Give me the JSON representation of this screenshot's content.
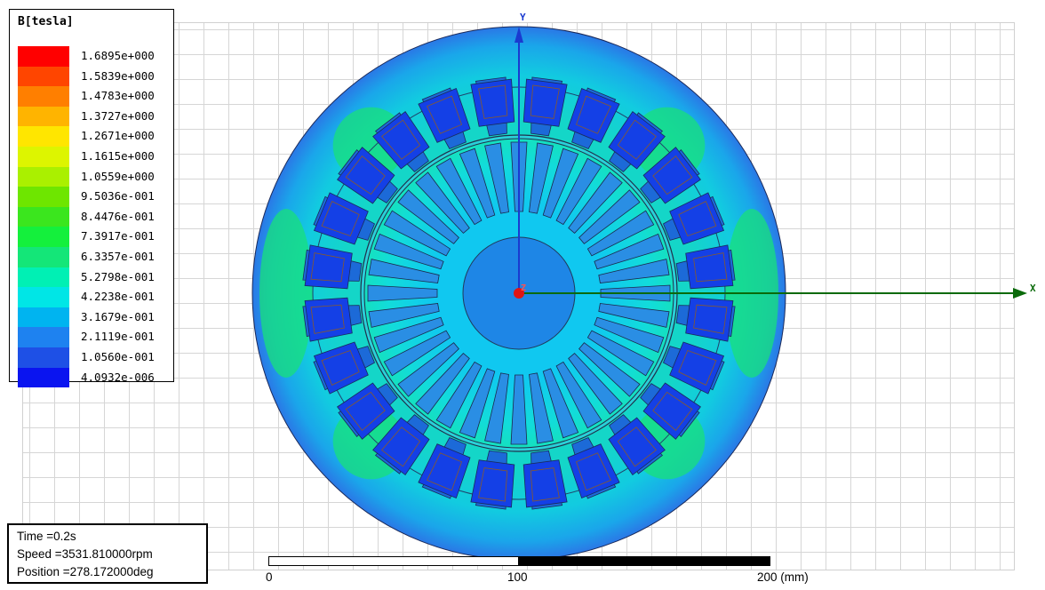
{
  "legend": {
    "title": "B[tesla]",
    "entries": [
      {
        "value": "1.6895e+000",
        "color": "#ff0000"
      },
      {
        "value": "1.5839e+000",
        "color": "#ff4500"
      },
      {
        "value": "1.4783e+000",
        "color": "#ff7f00"
      },
      {
        "value": "1.3727e+000",
        "color": "#ffb400"
      },
      {
        "value": "1.2671e+000",
        "color": "#ffe600"
      },
      {
        "value": "1.1615e+000",
        "color": "#ddf500"
      },
      {
        "value": "1.0559e+000",
        "color": "#aaf000"
      },
      {
        "value": "9.5036e-001",
        "color": "#6ee600"
      },
      {
        "value": "8.4476e-001",
        "color": "#3be61e"
      },
      {
        "value": "7.3917e-001",
        "color": "#14f03c"
      },
      {
        "value": "6.3357e-001",
        "color": "#14e678"
      },
      {
        "value": "5.2798e-001",
        "color": "#00f0b4"
      },
      {
        "value": "4.2238e-001",
        "color": "#00e6e6"
      },
      {
        "value": "3.1679e-001",
        "color": "#00b4f0"
      },
      {
        "value": "2.1119e-001",
        "color": "#1e82f0"
      },
      {
        "value": "1.0560e-001",
        "color": "#1e50e6"
      },
      {
        "value": "4.0932e-006",
        "color": "#0a14f0"
      }
    ]
  },
  "info": {
    "time": "Time    =0.2s",
    "speed": "Speed    =3531.810000rpm",
    "position": "Position =278.172000deg"
  },
  "axes": {
    "x_label": "X",
    "y_label": "Y",
    "z_label": "Z"
  },
  "scale": {
    "tick_0": "0",
    "tick_100": "100",
    "tick_200": "200 (mm)"
  },
  "machine": {
    "stator_slots": 24,
    "rotor_bars": 36
  },
  "colors": {
    "outer_stator": "#2a82e8",
    "stator_yoke_mid": "#12c8d8",
    "stator_green": "#16e082",
    "rotor_core": "#12d2e4",
    "rotor_bar": "#2a8ee4",
    "shaft": "#1e82e6",
    "coil": "#1440e6",
    "coil_outline": "#8a5a2a",
    "x_axis": "#0a6a0a",
    "y_axis": "#1a3ad0",
    "origin": "#e01414"
  }
}
